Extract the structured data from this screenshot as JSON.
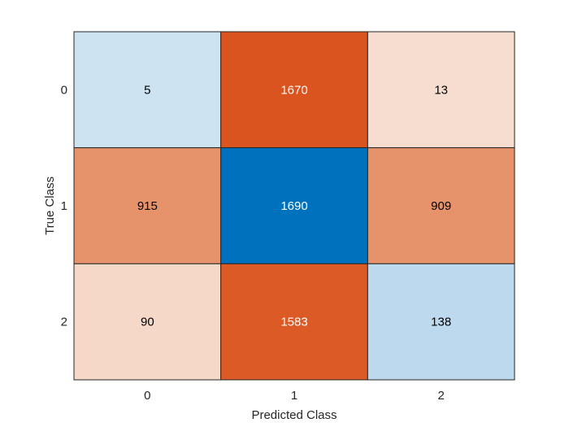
{
  "chart_data": {
    "type": "heatmap",
    "title": "",
    "xlabel": "Predicted Class",
    "ylabel": "True Class",
    "x_categories": [
      "0",
      "1",
      "2"
    ],
    "y_categories": [
      "0",
      "1",
      "2"
    ],
    "values": [
      [
        5,
        1670,
        13
      ],
      [
        915,
        1690,
        909
      ],
      [
        90,
        1583,
        138
      ]
    ],
    "cell_colors": [
      [
        "#cde3f2",
        "#d9541e",
        "#f6ddd0"
      ],
      [
        "#e6936c",
        "#0072bd",
        "#e6936c"
      ],
      [
        "#f6d8c9",
        "#db5a26",
        "#bcd9ee"
      ]
    ],
    "text_colors": [
      [
        "#000000",
        "#ffffff",
        "#000000"
      ],
      [
        "#000000",
        "#ffffff",
        "#000000"
      ],
      [
        "#000000",
        "#ffffff",
        "#000000"
      ]
    ]
  }
}
